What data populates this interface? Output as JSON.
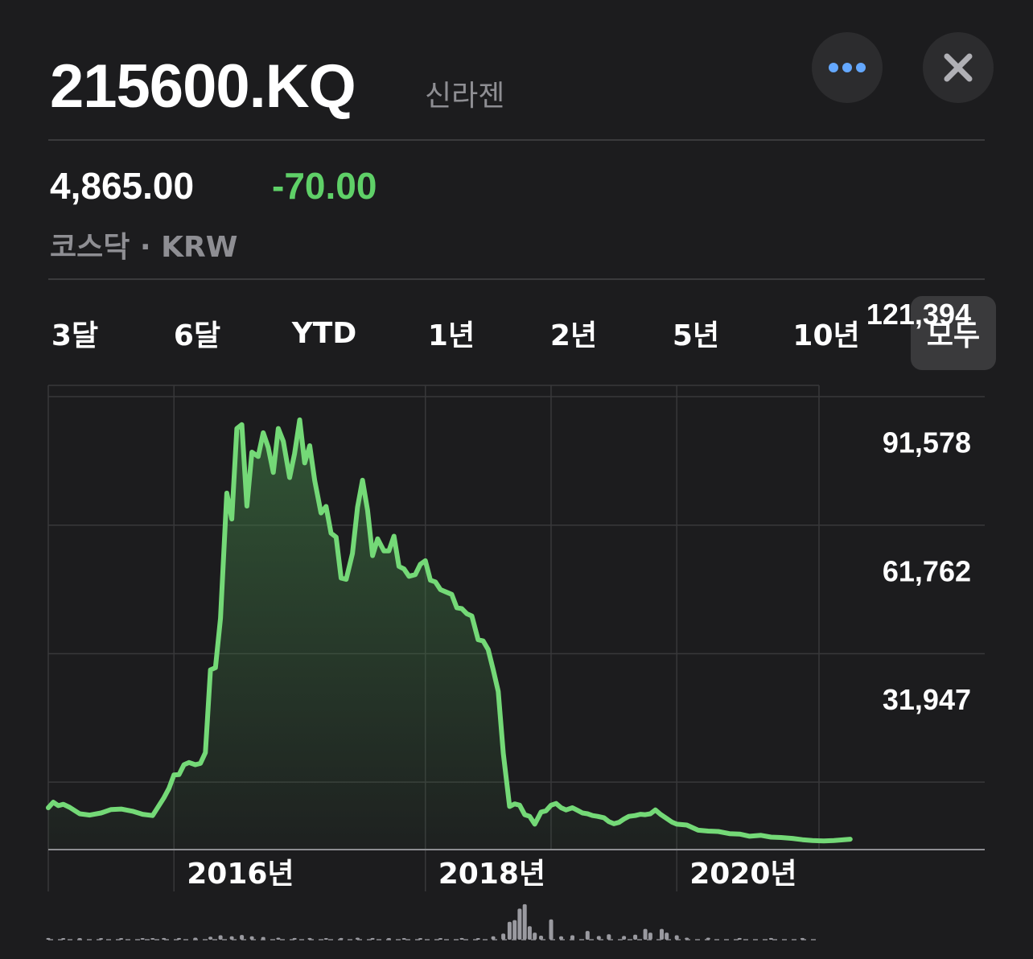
{
  "header": {
    "ticker": "215600.KQ",
    "company": "신라젠",
    "more_icon": "ellipsis-icon",
    "close_icon": "close-icon"
  },
  "quote": {
    "price": "4,865.00",
    "change": "-70.00",
    "exchange_currency": "코스닥 · KRW"
  },
  "colors": {
    "background": "#1c1c1e",
    "line": "#74d977",
    "change_text": "#5fd068",
    "more_dots": "#64a8ff"
  },
  "range_tabs": {
    "items": [
      "3달",
      "6달",
      "YTD",
      "1년",
      "2년",
      "5년",
      "10년",
      "모두"
    ],
    "selected": "모두"
  },
  "chart_data": {
    "type": "area",
    "ylim": [
      16300,
      124000
    ],
    "y_ticks": [
      31947,
      61762,
      91578,
      121394
    ],
    "y_tick_labels": [
      "31,947",
      "61,762",
      "91,578",
      "121,394"
    ],
    "x_range": [
      2015.0,
      2022.45
    ],
    "x_ticks": [
      2016,
      2018,
      2020
    ],
    "x_tick_labels": [
      "2016년",
      "2018년",
      "2020년"
    ],
    "grid": true,
    "points": [
      [
        2015.0,
        26000
      ],
      [
        2015.04,
        27300
      ],
      [
        2015.08,
        26500
      ],
      [
        2015.12,
        26800
      ],
      [
        2015.17,
        26100
      ],
      [
        2015.25,
        24600
      ],
      [
        2015.33,
        24300
      ],
      [
        2015.42,
        24800
      ],
      [
        2015.5,
        25600
      ],
      [
        2015.58,
        25700
      ],
      [
        2015.67,
        25200
      ],
      [
        2015.75,
        24500
      ],
      [
        2015.83,
        24200
      ],
      [
        2015.92,
        28300
      ],
      [
        2015.96,
        30500
      ],
      [
        2016.0,
        33600
      ],
      [
        2016.04,
        33700
      ],
      [
        2016.08,
        36000
      ],
      [
        2016.12,
        36500
      ],
      [
        2016.17,
        36000
      ],
      [
        2016.21,
        36300
      ],
      [
        2016.25,
        38800
      ],
      [
        2016.29,
        58000
      ],
      [
        2016.33,
        58500
      ],
      [
        2016.37,
        70000
      ],
      [
        2016.42,
        99000
      ],
      [
        2016.46,
        93000
      ],
      [
        2016.5,
        114000
      ],
      [
        2016.54,
        114900
      ],
      [
        2016.58,
        96000
      ],
      [
        2016.62,
        108500
      ],
      [
        2016.67,
        107500
      ],
      [
        2016.71,
        113000
      ],
      [
        2016.75,
        109600
      ],
      [
        2016.79,
        103800
      ],
      [
        2016.83,
        114000
      ],
      [
        2016.87,
        111000
      ],
      [
        2016.92,
        102600
      ],
      [
        2016.96,
        108200
      ],
      [
        2017.0,
        116000
      ],
      [
        2017.04,
        106000
      ],
      [
        2017.08,
        110000
      ],
      [
        2017.12,
        101900
      ],
      [
        2017.17,
        94400
      ],
      [
        2017.21,
        95900
      ],
      [
        2017.25,
        89700
      ],
      [
        2017.29,
        88800
      ],
      [
        2017.33,
        79300
      ],
      [
        2017.37,
        79000
      ],
      [
        2017.42,
        85000
      ],
      [
        2017.46,
        95700
      ],
      [
        2017.5,
        102000
      ],
      [
        2017.54,
        95000
      ],
      [
        2017.58,
        84500
      ],
      [
        2017.62,
        88400
      ],
      [
        2017.67,
        85600
      ],
      [
        2017.71,
        85600
      ],
      [
        2017.75,
        89000
      ],
      [
        2017.79,
        82000
      ],
      [
        2017.83,
        81400
      ],
      [
        2017.87,
        79700
      ],
      [
        2017.92,
        80100
      ],
      [
        2017.96,
        82500
      ],
      [
        2018.0,
        83300
      ],
      [
        2018.04,
        78800
      ],
      [
        2018.08,
        78400
      ],
      [
        2018.12,
        76600
      ],
      [
        2018.17,
        76000
      ],
      [
        2018.21,
        75500
      ],
      [
        2018.25,
        72400
      ],
      [
        2018.29,
        72200
      ],
      [
        2018.33,
        71000
      ],
      [
        2018.37,
        70500
      ],
      [
        2018.42,
        65000
      ],
      [
        2018.46,
        64700
      ],
      [
        2018.5,
        62700
      ],
      [
        2018.54,
        58000
      ],
      [
        2018.58,
        53000
      ],
      [
        2018.62,
        38600
      ],
      [
        2018.67,
        26300
      ],
      [
        2018.71,
        26900
      ],
      [
        2018.75,
        26600
      ],
      [
        2018.79,
        24400
      ],
      [
        2018.83,
        24000
      ],
      [
        2018.87,
        22200
      ],
      [
        2018.92,
        25000
      ],
      [
        2018.96,
        25300
      ],
      [
        2019.0,
        26600
      ],
      [
        2019.04,
        27000
      ],
      [
        2019.08,
        26000
      ],
      [
        2019.12,
        25500
      ],
      [
        2019.17,
        26000
      ],
      [
        2019.21,
        25400
      ],
      [
        2019.25,
        24800
      ],
      [
        2019.29,
        24600
      ],
      [
        2019.33,
        24200
      ],
      [
        2019.37,
        24000
      ],
      [
        2019.42,
        23700
      ],
      [
        2019.46,
        22800
      ],
      [
        2019.5,
        22300
      ],
      [
        2019.54,
        22600
      ],
      [
        2019.58,
        23400
      ],
      [
        2019.62,
        24000
      ],
      [
        2019.67,
        24200
      ],
      [
        2019.71,
        24500
      ],
      [
        2019.75,
        24400
      ],
      [
        2019.79,
        24600
      ],
      [
        2019.83,
        25500
      ],
      [
        2019.87,
        24500
      ],
      [
        2019.92,
        23500
      ],
      [
        2019.96,
        22700
      ],
      [
        2020.0,
        22200
      ],
      [
        2020.08,
        22000
      ],
      [
        2020.17,
        20800
      ],
      [
        2020.25,
        20600
      ],
      [
        2020.33,
        20500
      ],
      [
        2020.42,
        20000
      ],
      [
        2020.5,
        19900
      ],
      [
        2020.58,
        19400
      ],
      [
        2020.67,
        19600
      ],
      [
        2020.75,
        19200
      ],
      [
        2020.83,
        19100
      ],
      [
        2020.92,
        18900
      ],
      [
        2021.0,
        18600
      ],
      [
        2021.08,
        18400
      ],
      [
        2021.17,
        18300
      ],
      [
        2021.25,
        18400
      ],
      [
        2021.33,
        18600
      ],
      [
        2021.38,
        18700
      ]
    ],
    "volume": [
      [
        2015.0,
        0.5
      ],
      [
        2015.12,
        0.3
      ],
      [
        2015.25,
        0.3
      ],
      [
        2015.42,
        0.4
      ],
      [
        2015.58,
        0.3
      ],
      [
        2015.75,
        0.3
      ],
      [
        2015.83,
        0.4
      ],
      [
        2015.92,
        0.5
      ],
      [
        2016.04,
        0.5
      ],
      [
        2016.17,
        0.6
      ],
      [
        2016.29,
        0.9
      ],
      [
        2016.37,
        1.3
      ],
      [
        2016.46,
        1.0
      ],
      [
        2016.54,
        1.4
      ],
      [
        2016.62,
        1.0
      ],
      [
        2016.71,
        0.8
      ],
      [
        2016.83,
        0.6
      ],
      [
        2016.96,
        0.5
      ],
      [
        2017.08,
        0.5
      ],
      [
        2017.21,
        0.4
      ],
      [
        2017.33,
        0.5
      ],
      [
        2017.46,
        0.6
      ],
      [
        2017.58,
        0.5
      ],
      [
        2017.71,
        0.4
      ],
      [
        2017.83,
        0.4
      ],
      [
        2017.96,
        0.4
      ],
      [
        2018.12,
        0.4
      ],
      [
        2018.29,
        0.5
      ],
      [
        2018.42,
        0.4
      ],
      [
        2018.54,
        1.0
      ],
      [
        2018.62,
        1.8
      ],
      [
        2018.67,
        5.3
      ],
      [
        2018.71,
        5.8
      ],
      [
        2018.75,
        9.2
      ],
      [
        2018.79,
        10.5
      ],
      [
        2018.83,
        4.0
      ],
      [
        2018.87,
        2.1
      ],
      [
        2018.92,
        1.2
      ],
      [
        2019.0,
        6.0
      ],
      [
        2019.08,
        1.0
      ],
      [
        2019.17,
        1.3
      ],
      [
        2019.29,
        2.6
      ],
      [
        2019.38,
        1.1
      ],
      [
        2019.46,
        1.6
      ],
      [
        2019.58,
        1.1
      ],
      [
        2019.67,
        1.5
      ],
      [
        2019.75,
        3.2
      ],
      [
        2019.79,
        2.1
      ],
      [
        2019.88,
        3.2
      ],
      [
        2019.92,
        2.1
      ],
      [
        2020.0,
        1.3
      ],
      [
        2020.08,
        0.6
      ],
      [
        2020.25,
        0.6
      ],
      [
        2020.5,
        0.5
      ],
      [
        2020.75,
        0.5
      ],
      [
        2021.0,
        0.5
      ]
    ]
  }
}
